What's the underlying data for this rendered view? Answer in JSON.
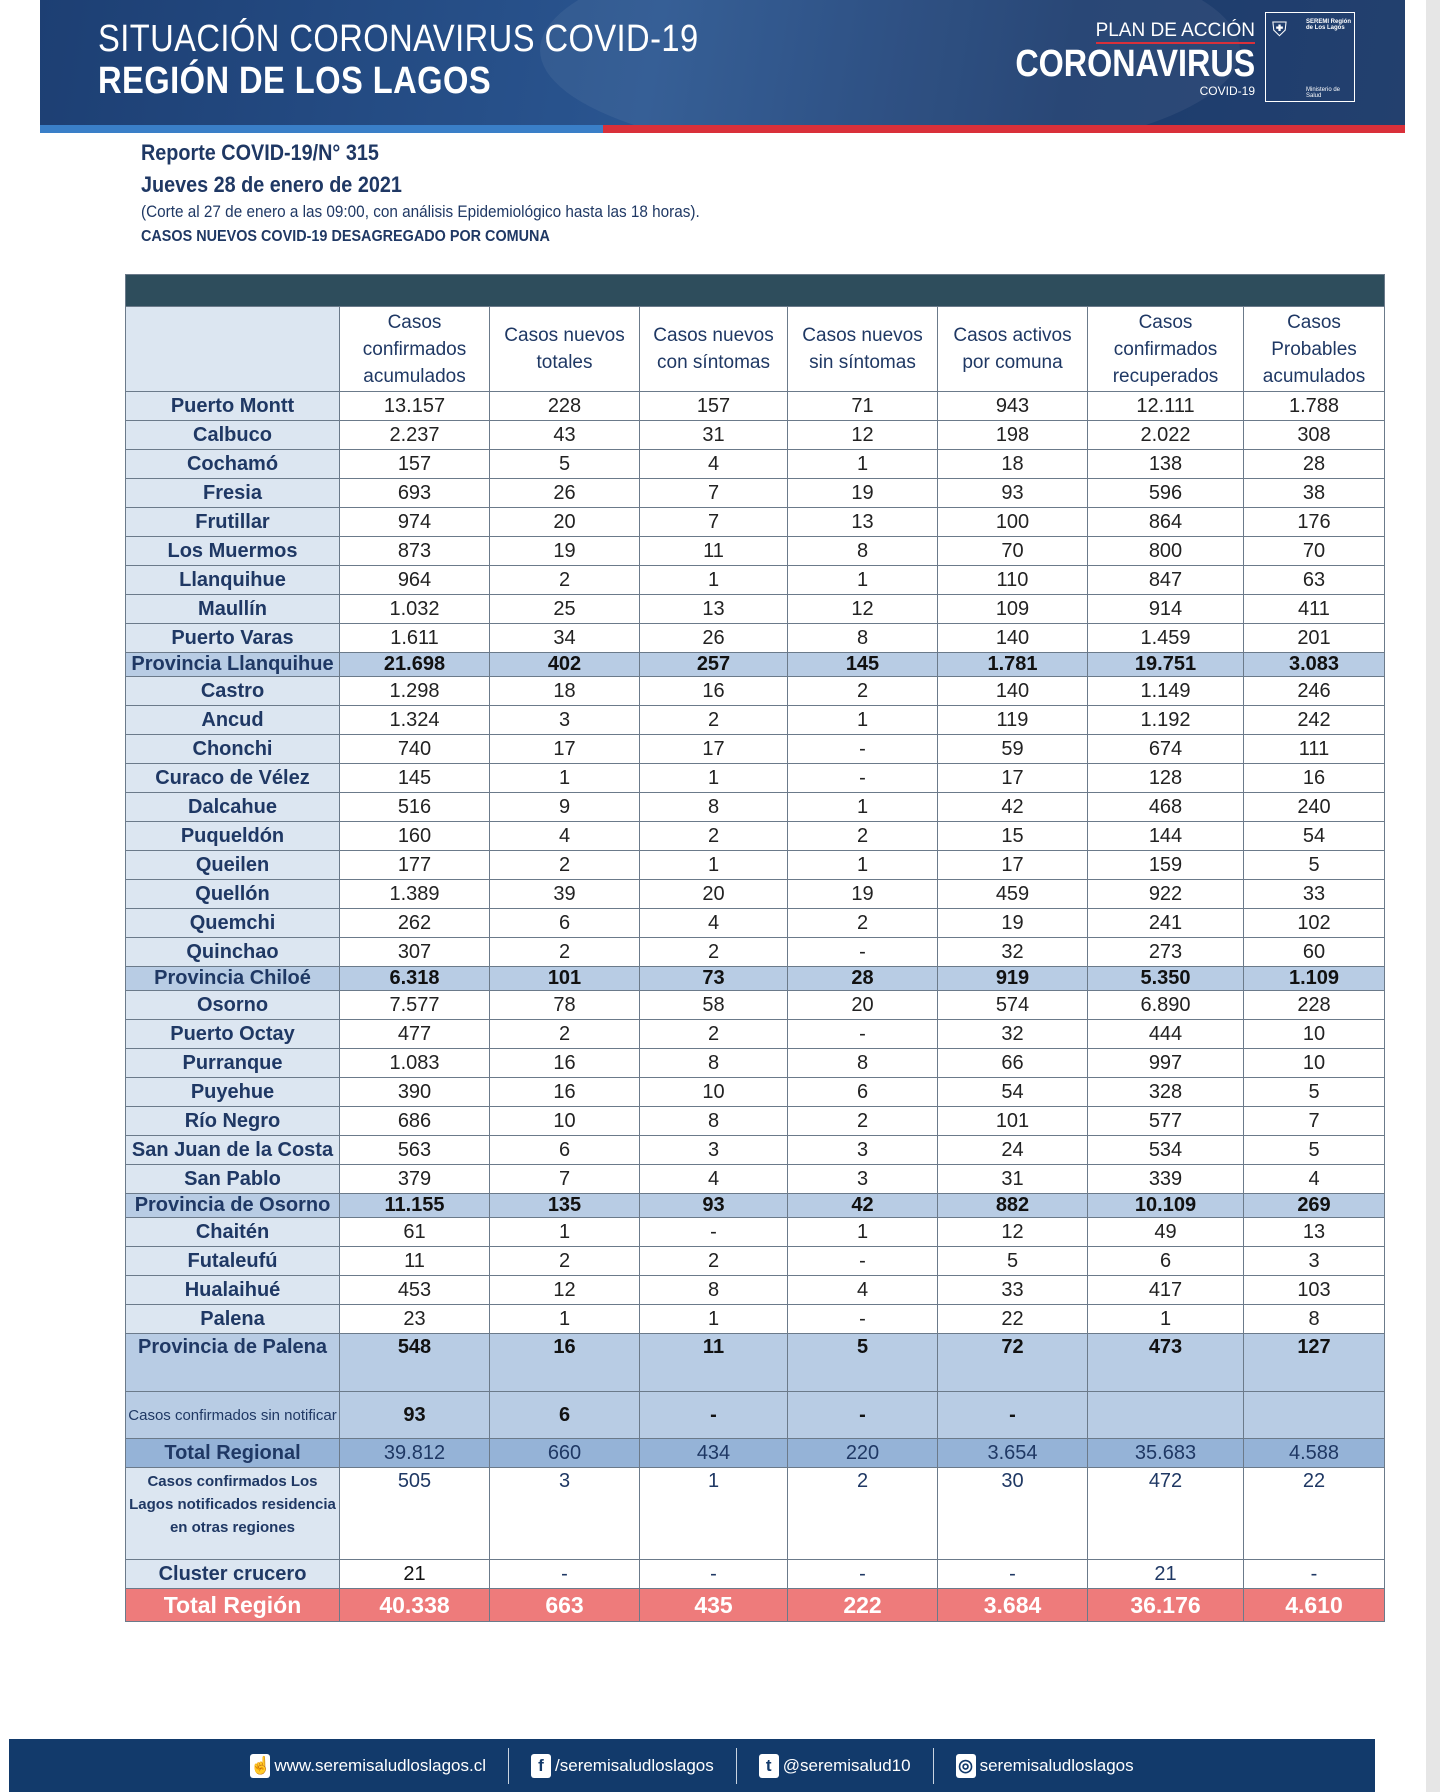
{
  "header": {
    "title_line1": "SITUACIÓN CORONAVIRUS COVID-19",
    "title_line2": "REGIÓN DE LOS LAGOS",
    "logo_plan": "PLAN DE ACCIÓN",
    "logo_main": "CORONAVIRUS",
    "logo_sub": "COVID-19",
    "gob_top": "SEREMI Región de Los Lagos",
    "gob_bottom": "Ministerio de Salud"
  },
  "report": {
    "number": "Reporte COVID-19/N° 315",
    "date": "Jueves 28 de enero de 2021",
    "note": "(Corte al 27 de enero a las 09:00, con análisis Epidemiológico hasta las 18 horas).",
    "subtitle": "CASOS NUEVOS COVID-19 DESAGREGADO POR COMUNA"
  },
  "table": {
    "headers": [
      "",
      "Casos confirmados acumulados",
      "Casos nuevos totales",
      "Casos nuevos con síntomas",
      "Casos nuevos sin síntomas",
      "Casos activos por comuna",
      "Casos confirmados recuperados",
      "Casos Probables acumulados"
    ],
    "rows": [
      {
        "type": "row",
        "cells": [
          "Puerto Montt",
          "13.157",
          "228",
          "157",
          "71",
          "943",
          "12.111",
          "1.788"
        ]
      },
      {
        "type": "row",
        "cells": [
          "Calbuco",
          "2.237",
          "43",
          "31",
          "12",
          "198",
          "2.022",
          "308"
        ]
      },
      {
        "type": "row",
        "cells": [
          "Cochamó",
          "157",
          "5",
          "4",
          "1",
          "18",
          "138",
          "28"
        ]
      },
      {
        "type": "row",
        "cells": [
          "Fresia",
          "693",
          "26",
          "7",
          "19",
          "93",
          "596",
          "38"
        ]
      },
      {
        "type": "row",
        "cells": [
          "Frutillar",
          "974",
          "20",
          "7",
          "13",
          "100",
          "864",
          "176"
        ]
      },
      {
        "type": "row",
        "cells": [
          "Los Muermos",
          "873",
          "19",
          "11",
          "8",
          "70",
          "800",
          "70"
        ]
      },
      {
        "type": "row",
        "cells": [
          "Llanquihue",
          "964",
          "2",
          "1",
          "1",
          "110",
          "847",
          "63"
        ]
      },
      {
        "type": "row",
        "cells": [
          "Maullín",
          "1.032",
          "25",
          "13",
          "12",
          "109",
          "914",
          "411"
        ]
      },
      {
        "type": "row",
        "cells": [
          "Puerto Varas",
          "1.611",
          "34",
          "26",
          "8",
          "140",
          "1.459",
          "201"
        ]
      },
      {
        "type": "prov",
        "cells": [
          "Provincia Llanquihue",
          "21.698",
          "402",
          "257",
          "145",
          "1.781",
          "19.751",
          "3.083"
        ]
      },
      {
        "type": "row",
        "cells": [
          "Castro",
          "1.298",
          "18",
          "16",
          "2",
          "140",
          "1.149",
          "246"
        ]
      },
      {
        "type": "row",
        "cells": [
          "Ancud",
          "1.324",
          "3",
          "2",
          "1",
          "119",
          "1.192",
          "242"
        ]
      },
      {
        "type": "row",
        "cells": [
          "Chonchi",
          "740",
          "17",
          "17",
          "-",
          "59",
          "674",
          "111"
        ]
      },
      {
        "type": "row",
        "cells": [
          "Curaco de Vélez",
          "145",
          "1",
          "1",
          "-",
          "17",
          "128",
          "16"
        ]
      },
      {
        "type": "row",
        "cells": [
          "Dalcahue",
          "516",
          "9",
          "8",
          "1",
          "42",
          "468",
          "240"
        ]
      },
      {
        "type": "row",
        "cells": [
          "Puqueldón",
          "160",
          "4",
          "2",
          "2",
          "15",
          "144",
          "54"
        ]
      },
      {
        "type": "row",
        "cells": [
          "Queilen",
          "177",
          "2",
          "1",
          "1",
          "17",
          "159",
          "5"
        ]
      },
      {
        "type": "row",
        "cells": [
          "Quellón",
          "1.389",
          "39",
          "20",
          "19",
          "459",
          "922",
          "33"
        ]
      },
      {
        "type": "row",
        "cells": [
          "Quemchi",
          "262",
          "6",
          "4",
          "2",
          "19",
          "241",
          "102"
        ]
      },
      {
        "type": "row",
        "cells": [
          "Quinchao",
          "307",
          "2",
          "2",
          "-",
          "32",
          "273",
          "60"
        ]
      },
      {
        "type": "prov",
        "cells": [
          "Provincia Chiloé",
          "6.318",
          "101",
          "73",
          "28",
          "919",
          "5.350",
          "1.109"
        ]
      },
      {
        "type": "row",
        "cells": [
          "Osorno",
          "7.577",
          "78",
          "58",
          "20",
          "574",
          "6.890",
          "228"
        ]
      },
      {
        "type": "row",
        "cells": [
          "Puerto Octay",
          "477",
          "2",
          "2",
          "-",
          "32",
          "444",
          "10"
        ]
      },
      {
        "type": "row",
        "cells": [
          "Purranque",
          "1.083",
          "16",
          "8",
          "8",
          "66",
          "997",
          "10"
        ]
      },
      {
        "type": "row",
        "cells": [
          "Puyehue",
          "390",
          "16",
          "10",
          "6",
          "54",
          "328",
          "5"
        ]
      },
      {
        "type": "row",
        "cells": [
          "Río Negro",
          "686",
          "10",
          "8",
          "2",
          "101",
          "577",
          "7"
        ]
      },
      {
        "type": "row",
        "cells": [
          "San Juan de la Costa",
          "563",
          "6",
          "3",
          "3",
          "24",
          "534",
          "5"
        ]
      },
      {
        "type": "row",
        "cells": [
          "San Pablo",
          "379",
          "7",
          "4",
          "3",
          "31",
          "339",
          "4"
        ]
      },
      {
        "type": "prov",
        "cells": [
          "Provincia de Osorno",
          "11.155",
          "135",
          "93",
          "42",
          "882",
          "10.109",
          "269"
        ]
      },
      {
        "type": "row",
        "cells": [
          "Chaitén",
          "61",
          "1",
          "-",
          "1",
          "12",
          "49",
          "13"
        ]
      },
      {
        "type": "row",
        "cells": [
          "Futaleufú",
          "11",
          "2",
          "2",
          "-",
          "5",
          "6",
          "3"
        ]
      },
      {
        "type": "row",
        "cells": [
          "Hualaihué",
          "453",
          "12",
          "8",
          "4",
          "33",
          "417",
          "103"
        ]
      },
      {
        "type": "row",
        "cells": [
          "Palena",
          "23",
          "1",
          "1",
          "-",
          "22",
          "1",
          "8"
        ]
      },
      {
        "type": "prov palena",
        "cells": [
          "Provincia de Palena",
          "548",
          "16",
          "11",
          "5",
          "72",
          "473",
          "127"
        ]
      },
      {
        "type": "sinnot",
        "cells": [
          "Casos confirmados sin notificar",
          "93",
          "6",
          "-",
          "-",
          "-",
          "",
          ""
        ]
      },
      {
        "type": "treg",
        "cells": [
          "Total Regional",
          "39.812",
          "660",
          "434",
          "220",
          "3.654",
          "35.683",
          "4.588"
        ]
      },
      {
        "type": "otras",
        "cells": [
          "Casos confirmados Los Lagos notificados residencia en otras regiones",
          "505",
          "3",
          "1",
          "2",
          "30",
          "472",
          "22"
        ]
      },
      {
        "type": "clus",
        "cells": [
          "Cluster crucero",
          "21",
          "-",
          "-",
          "-",
          "-",
          "21",
          "-"
        ]
      },
      {
        "type": "total",
        "cells": [
          "Total Región",
          "40.338",
          "663",
          "435",
          "222",
          "3.684",
          "36.176",
          "4.610"
        ]
      }
    ]
  },
  "colors": {
    "navy": "#1f3864",
    "province_row": "#b8cce4",
    "total_regional": "#95b3d7",
    "total_region": "#ee7b7b",
    "header_bar": "#2e4d5c",
    "footer": "#123a6b"
  },
  "footer": {
    "items": [
      {
        "icon": "web-hand-icon",
        "label": "www.seremisaludloslagos.cl"
      },
      {
        "icon": "facebook-icon",
        "label": "/seremisaludloslagos"
      },
      {
        "icon": "twitter-icon",
        "label": "@seremisalud10"
      },
      {
        "icon": "instagram-icon",
        "label": "seremisaludloslagos"
      }
    ]
  }
}
